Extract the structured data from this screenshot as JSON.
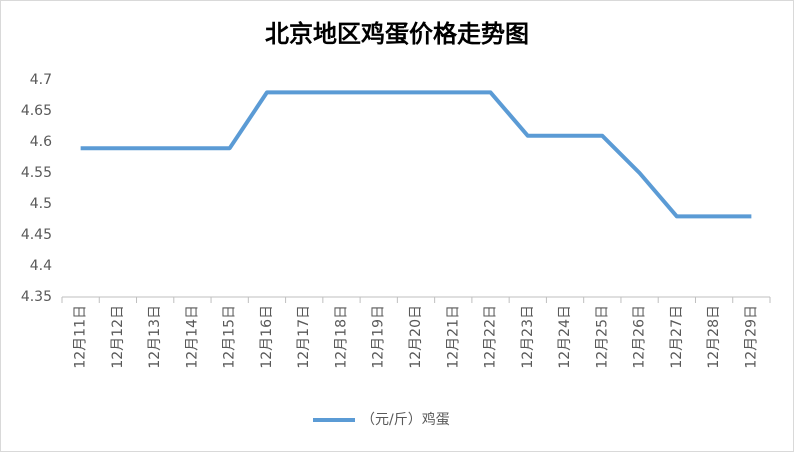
{
  "chart_data": {
    "type": "line",
    "title": "北京地区鸡蛋价格走势图",
    "categories": [
      "12月11日",
      "12月12日",
      "12月13日",
      "12月14日",
      "12月15日",
      "12月16日",
      "12月17日",
      "12月18日",
      "12月19日",
      "12月20日",
      "12月21日",
      "12月22日",
      "12月23日",
      "12月24日",
      "12月25日",
      "12月26日",
      "12月27日",
      "12月28日",
      "12月29日"
    ],
    "series": [
      {
        "name": "（元/斤）鸡蛋",
        "color": "#5b9bd5",
        "values": [
          4.59,
          4.59,
          4.59,
          4.59,
          4.59,
          4.68,
          4.68,
          4.68,
          4.68,
          4.68,
          4.68,
          4.68,
          4.61,
          4.61,
          4.61,
          4.55,
          4.48,
          4.48,
          4.48
        ]
      }
    ],
    "ylim": [
      4.35,
      4.7
    ],
    "yticks": [
      4.35,
      4.4,
      4.45,
      4.5,
      4.55,
      4.6,
      4.65,
      4.7
    ],
    "grid": false,
    "legend": "bottom"
  }
}
